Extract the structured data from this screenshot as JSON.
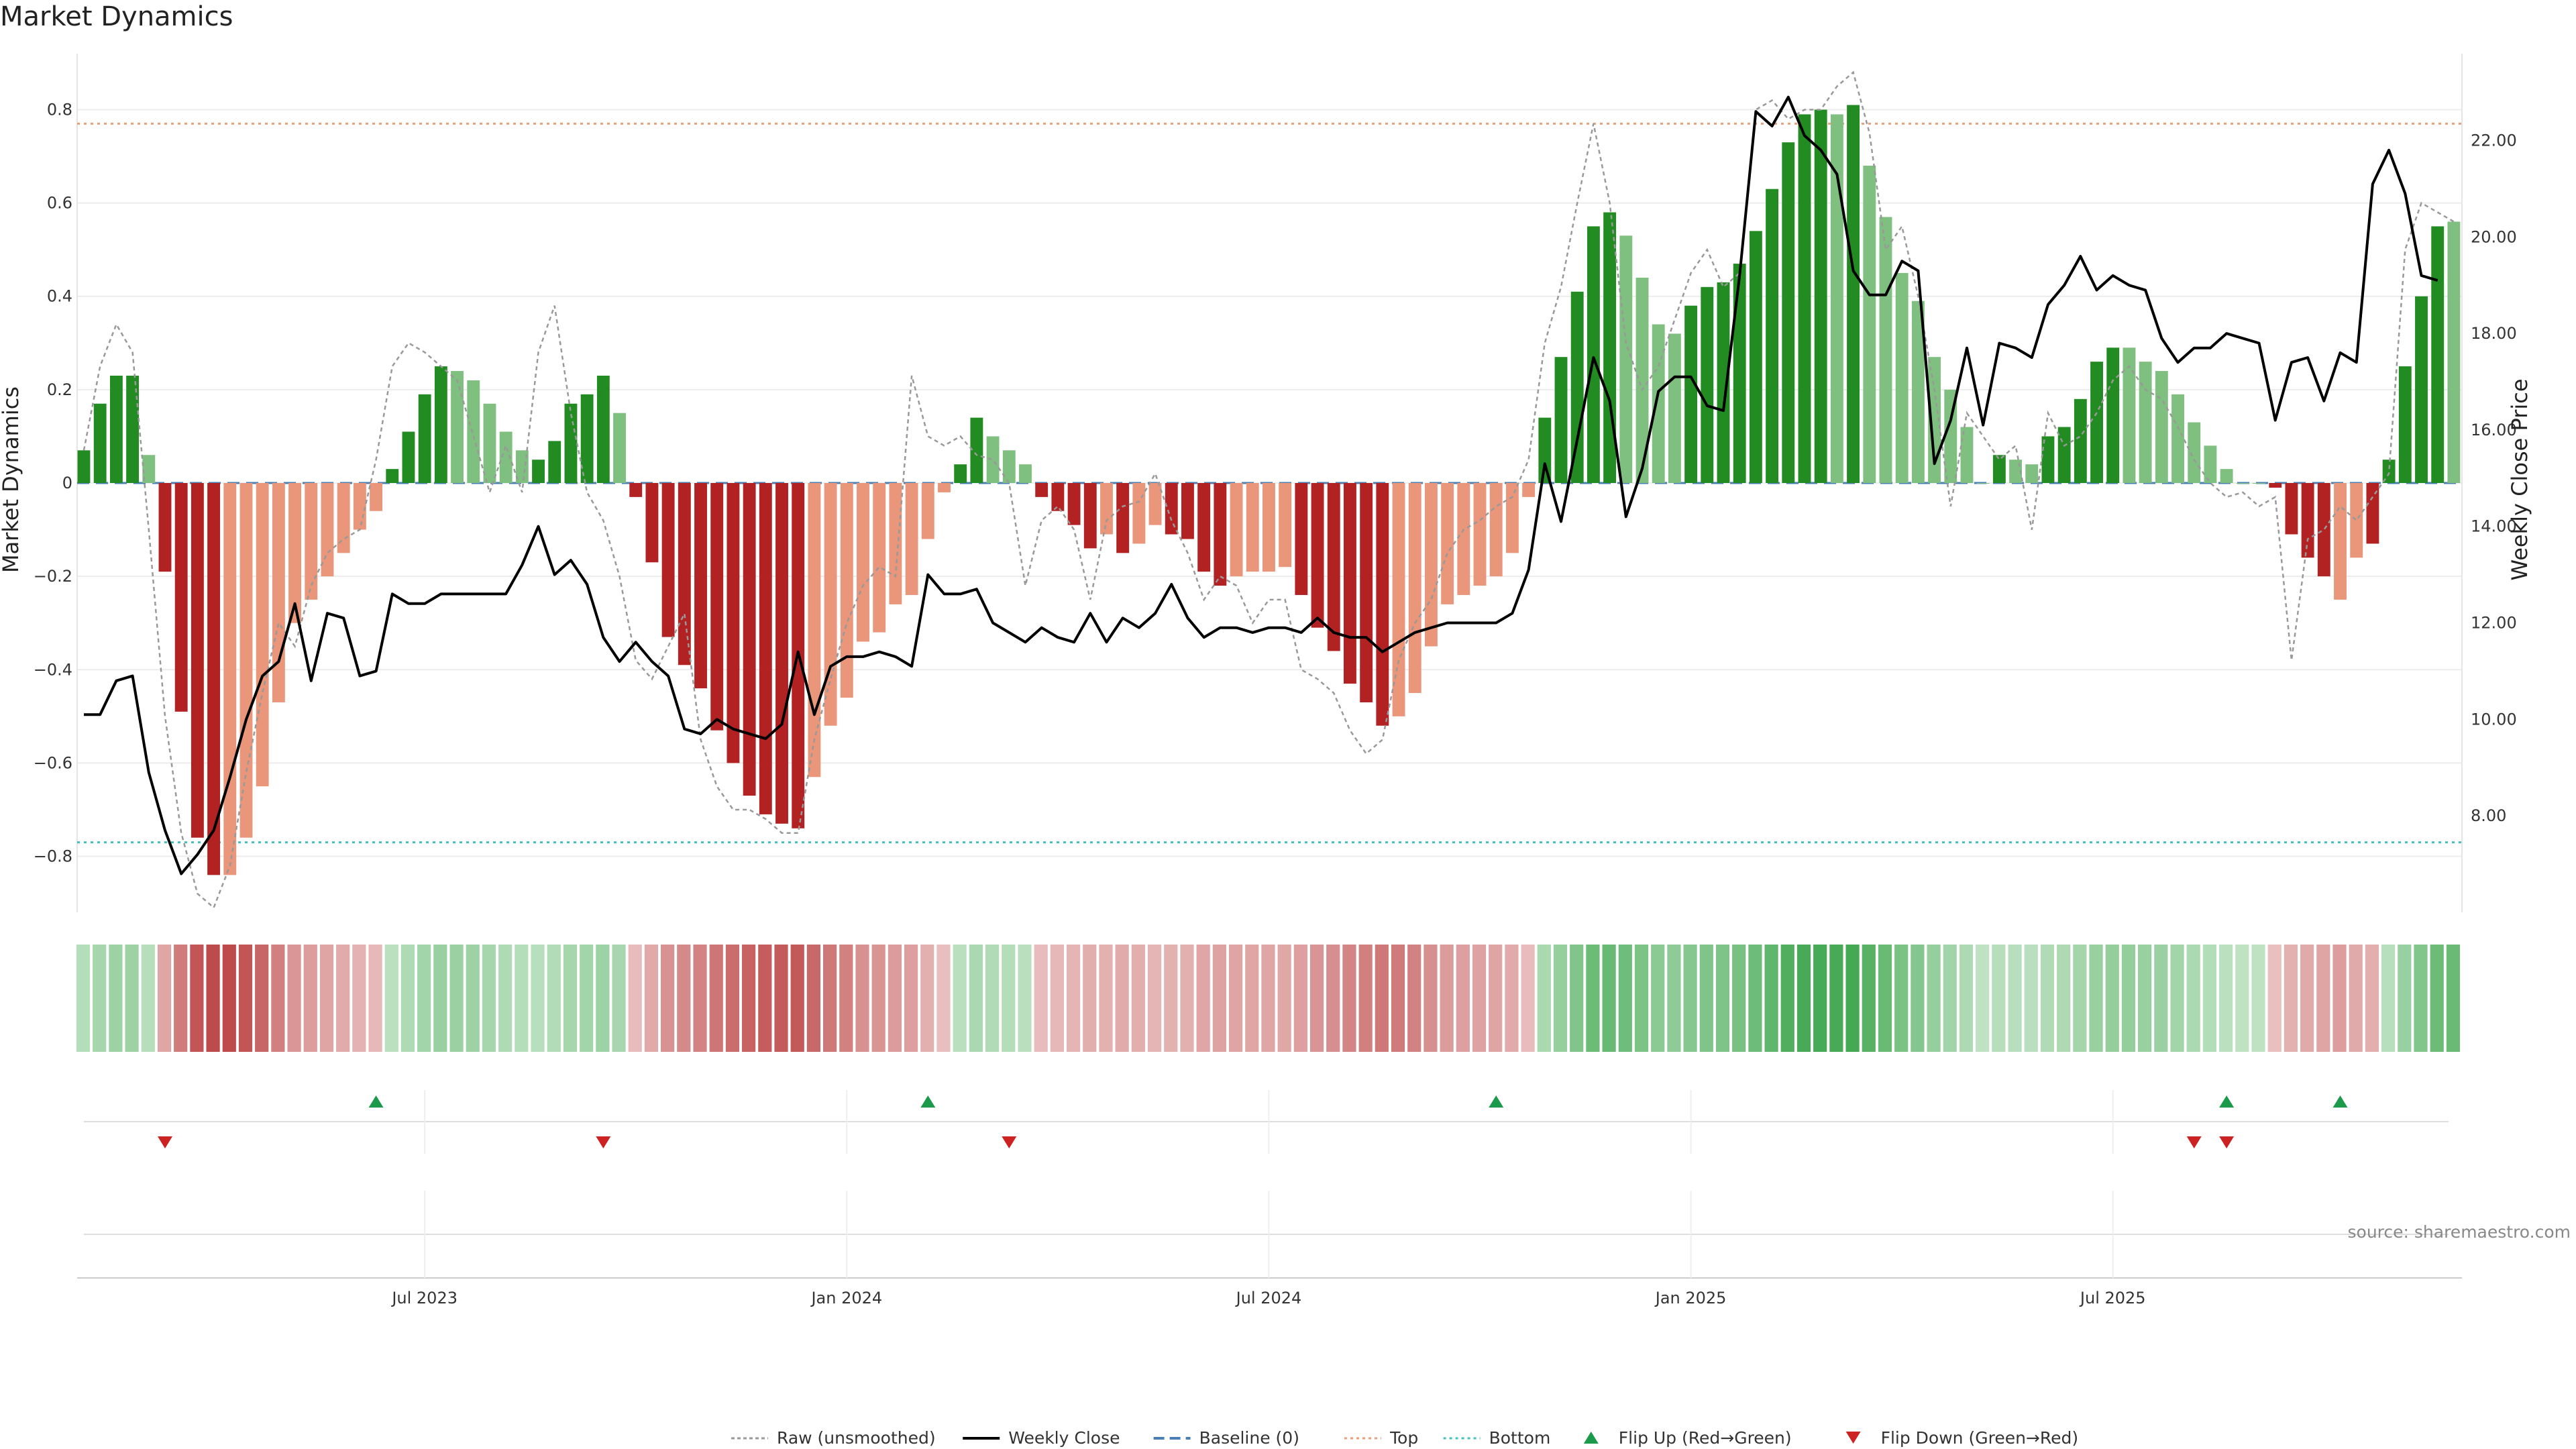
{
  "title": "Market Dynamics",
  "source": "source: sharemaestro.com",
  "colors": {
    "strong_green": "#228B22",
    "weak_green": "#7FBF7F",
    "strong_red": "#B22222",
    "weak_red": "#E9967A",
    "price_line": "#000000",
    "raw_line": "#999999",
    "baseline": "#4a7fb5",
    "top": "#e8a07a",
    "bottom": "#40c0c0",
    "flip_up": "#1a9a4a",
    "flip_down": "#cc2222"
  },
  "chart_data": {
    "type": "bar",
    "title": "Market Dynamics",
    "ylabel": "Market Dynamics",
    "y2label": "Weekly Close Price",
    "ylim": [
      -0.92,
      0.92
    ],
    "y2lim": [
      6.0,
      23.8
    ],
    "yticks": [
      "0.8",
      "0.6",
      "0.4",
      "0.2",
      "0",
      "−0.2",
      "−0.4",
      "−0.6",
      "−0.8"
    ],
    "ytick_values": [
      0.8,
      0.6,
      0.4,
      0.2,
      0,
      -0.2,
      -0.4,
      -0.6,
      -0.8
    ],
    "y2ticks": [
      "22.00",
      "20.00",
      "18.00",
      "16.00",
      "14.00",
      "12.00",
      "10.00",
      "8.00"
    ],
    "y2tick_values": [
      22,
      20,
      18,
      16,
      14,
      12,
      10,
      8
    ],
    "xticks": [
      {
        "label": "Jul 2023",
        "week": 21
      },
      {
        "label": "Jan 2024",
        "week": 47
      },
      {
        "label": "Jul 2024",
        "week": 73
      },
      {
        "label": "Jan 2025",
        "week": 99
      },
      {
        "label": "Jul 2025",
        "week": 125
      }
    ],
    "top": 0.77,
    "bottom": -0.77,
    "baseline": 0,
    "dynamics": [
      0.07,
      0.17,
      0.23,
      0.23,
      0.06,
      -0.19,
      -0.49,
      -0.76,
      -0.84,
      -0.84,
      -0.76,
      -0.65,
      -0.47,
      -0.3,
      -0.25,
      -0.2,
      -0.15,
      -0.1,
      -0.06,
      0.03,
      0.11,
      0.19,
      0.25,
      0.24,
      0.22,
      0.17,
      0.11,
      0.07,
      0.05,
      0.09,
      0.17,
      0.19,
      0.23,
      0.15,
      -0.03,
      -0.17,
      -0.33,
      -0.39,
      -0.44,
      -0.53,
      -0.6,
      -0.67,
      -0.71,
      -0.73,
      -0.74,
      -0.63,
      -0.52,
      -0.46,
      -0.34,
      -0.32,
      -0.26,
      -0.24,
      -0.12,
      -0.02,
      0.04,
      0.14,
      0.1,
      0.07,
      0.04,
      -0.03,
      -0.06,
      -0.09,
      -0.14,
      -0.11,
      -0.15,
      -0.13,
      -0.09,
      -0.11,
      -0.12,
      -0.19,
      -0.22,
      -0.2,
      -0.19,
      -0.19,
      -0.18,
      -0.24,
      -0.31,
      -0.36,
      -0.43,
      -0.47,
      -0.52,
      -0.5,
      -0.45,
      -0.35,
      -0.26,
      -0.24,
      -0.22,
      -0.2,
      -0.15,
      -0.03,
      0.14,
      0.27,
      0.41,
      0.55,
      0.58,
      0.53,
      0.44,
      0.34,
      0.32,
      0.38,
      0.42,
      0.43,
      0.47,
      0.54,
      0.63,
      0.73,
      0.79,
      0.8,
      0.79,
      0.81,
      0.68,
      0.57,
      0.45,
      0.39,
      0.27,
      0.2,
      0.12,
      0.0,
      0.06,
      0.05,
      0.04,
      0.1,
      0.12,
      0.18,
      0.26,
      0.29,
      0.29,
      0.26,
      0.24,
      0.19,
      0.13,
      0.08,
      0.03,
      0.0,
      0.0,
      -0.01,
      -0.11,
      -0.16,
      -0.2,
      -0.25,
      -0.16,
      -0.13,
      0.05,
      0.25,
      0.4,
      0.55,
      0.56
    ],
    "strength": [
      "s",
      "s",
      "s",
      "s",
      "w",
      "s",
      "s",
      "s",
      "s",
      "w",
      "w",
      "w",
      "w",
      "w",
      "w",
      "w",
      "w",
      "w",
      "w",
      "s",
      "s",
      "s",
      "s",
      "w",
      "w",
      "w",
      "w",
      "w",
      "s",
      "s",
      "s",
      "s",
      "s",
      "w",
      "s",
      "s",
      "s",
      "s",
      "s",
      "s",
      "s",
      "s",
      "s",
      "s",
      "s",
      "w",
      "w",
      "w",
      "w",
      "w",
      "w",
      "w",
      "w",
      "w",
      "s",
      "s",
      "w",
      "w",
      "w",
      "s",
      "s",
      "s",
      "s",
      "w",
      "s",
      "w",
      "w",
      "s",
      "s",
      "s",
      "s",
      "w",
      "w",
      "w",
      "w",
      "s",
      "s",
      "s",
      "s",
      "s",
      "s",
      "w",
      "w",
      "w",
      "w",
      "w",
      "w",
      "w",
      "w",
      "w",
      "s",
      "s",
      "s",
      "s",
      "s",
      "w",
      "w",
      "w",
      "w",
      "s",
      "s",
      "s",
      "s",
      "s",
      "s",
      "s",
      "s",
      "s",
      "w",
      "s",
      "w",
      "w",
      "w",
      "w",
      "w",
      "w",
      "w",
      "w",
      "s",
      "w",
      "w",
      "s",
      "s",
      "s",
      "s",
      "s",
      "w",
      "w",
      "w",
      "w",
      "w",
      "w",
      "w",
      "w",
      "w",
      "s",
      "s",
      "s",
      "s",
      "w",
      "w",
      "s",
      "s",
      "s",
      "s",
      "s"
    ],
    "raw": [
      0.07,
      0.25,
      0.34,
      0.28,
      -0.1,
      -0.5,
      -0.75,
      -0.88,
      -0.91,
      -0.82,
      -0.62,
      -0.45,
      -0.3,
      -0.35,
      -0.22,
      -0.15,
      -0.12,
      -0.1,
      0.05,
      0.25,
      0.3,
      0.28,
      0.25,
      0.22,
      0.1,
      -0.02,
      0.08,
      -0.02,
      0.28,
      0.38,
      0.15,
      -0.02,
      -0.08,
      -0.2,
      -0.38,
      -0.42,
      -0.35,
      -0.28,
      -0.55,
      -0.65,
      -0.7,
      -0.7,
      -0.72,
      -0.75,
      -0.75,
      -0.55,
      -0.42,
      -0.3,
      -0.22,
      -0.18,
      -0.2,
      0.23,
      0.1,
      0.08,
      0.1,
      0.06,
      0.05,
      0.0,
      -0.22,
      -0.08,
      -0.05,
      -0.1,
      -0.25,
      -0.08,
      -0.05,
      -0.04,
      0.02,
      -0.08,
      -0.15,
      -0.25,
      -0.2,
      -0.22,
      -0.3,
      -0.25,
      -0.25,
      -0.4,
      -0.42,
      -0.45,
      -0.53,
      -0.58,
      -0.55,
      -0.38,
      -0.3,
      -0.25,
      -0.15,
      -0.1,
      -0.08,
      -0.05,
      -0.03,
      0.05,
      0.3,
      0.42,
      0.6,
      0.77,
      0.6,
      0.3,
      0.2,
      0.25,
      0.35,
      0.45,
      0.5,
      0.42,
      0.45,
      0.8,
      0.82,
      0.78,
      0.8,
      0.8,
      0.85,
      0.88,
      0.75,
      0.5,
      0.55,
      0.4,
      0.2,
      -0.05,
      0.15,
      0.1,
      0.05,
      0.08,
      -0.1,
      0.15,
      0.08,
      0.1,
      0.15,
      0.22,
      0.25,
      0.2,
      0.18,
      0.12,
      0.05,
      0.0,
      -0.03,
      -0.02,
      -0.05,
      -0.03,
      -0.38,
      -0.12,
      -0.1,
      -0.05,
      -0.08,
      -0.03,
      0.02,
      0.5,
      0.6,
      0.58,
      0.56
    ],
    "close": [
      10.1,
      10.1,
      10.8,
      10.9,
      8.9,
      7.7,
      6.8,
      7.2,
      7.7,
      8.8,
      10.0,
      10.9,
      11.2,
      12.4,
      10.8,
      12.2,
      12.1,
      10.9,
      11.0,
      12.6,
      12.4,
      12.4,
      12.6,
      12.6,
      12.6,
      12.6,
      12.6,
      13.2,
      14.0,
      13.0,
      13.3,
      12.8,
      11.7,
      11.2,
      11.6,
      11.2,
      10.9,
      9.8,
      9.7,
      10.0,
      9.8,
      9.7,
      9.6,
      9.9,
      11.4,
      10.1,
      11.1,
      11.3,
      11.3,
      11.4,
      11.3,
      11.1,
      13.0,
      12.6,
      12.6,
      12.7,
      12.0,
      11.8,
      11.6,
      11.9,
      11.7,
      11.6,
      12.2,
      11.6,
      12.1,
      11.9,
      12.2,
      12.8,
      12.1,
      11.7,
      11.9,
      11.9,
      11.8,
      11.9,
      11.9,
      11.8,
      12.1,
      11.8,
      11.7,
      11.7,
      11.4,
      11.6,
      11.8,
      11.9,
      12.0,
      12.0,
      12.0,
      12.0,
      12.2,
      13.1,
      15.3,
      14.1,
      15.8,
      17.5,
      16.6,
      14.2,
      15.2,
      16.8,
      17.1,
      17.1,
      16.5,
      16.4,
      19.2,
      22.6,
      22.3,
      22.9,
      22.1,
      21.8,
      21.3,
      19.3,
      18.8,
      18.8,
      19.5,
      19.3,
      15.3,
      16.2,
      17.7,
      16.1,
      17.8,
      17.7,
      17.5,
      18.6,
      19.0,
      19.6,
      18.9,
      19.2,
      19.0,
      18.9,
      17.9,
      17.4,
      17.7,
      17.7,
      18.0,
      17.9,
      17.8,
      16.2,
      17.4,
      17.5,
      16.6,
      17.6,
      17.4,
      21.1,
      21.8,
      20.9,
      19.2,
      19.1
    ]
  },
  "flips": {
    "up": [
      18,
      52,
      87,
      132,
      139
    ],
    "down": [
      5,
      32,
      57,
      130,
      132
    ]
  },
  "legend": [
    {
      "label": "Raw (unsmoothed)",
      "kind": "raw"
    },
    {
      "label": "Weekly Close",
      "kind": "close"
    },
    {
      "label": "Baseline (0)",
      "kind": "baseline"
    },
    {
      "label": "Top",
      "kind": "top"
    },
    {
      "label": "Bottom",
      "kind": "bottom"
    },
    {
      "label": "Flip Up (Red→Green)",
      "kind": "flip_up"
    },
    {
      "label": "Flip Down (Green→Red)",
      "kind": "flip_down"
    }
  ]
}
